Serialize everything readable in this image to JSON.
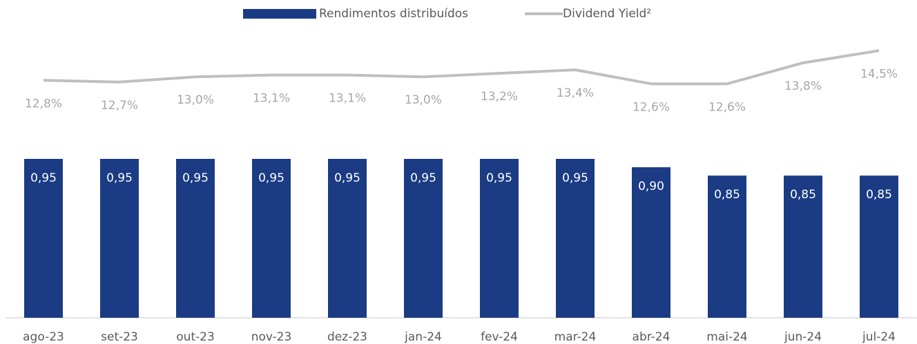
{
  "chart_data": {
    "type": "bar",
    "categories": [
      "ago-23",
      "set-23",
      "out-23",
      "nov-23",
      "dez-23",
      "jan-24",
      "fev-24",
      "mar-24",
      "abr-24",
      "mai-24",
      "jun-24",
      "jul-24"
    ],
    "series": [
      {
        "name": "Rendimentos distribuídos",
        "type": "bar",
        "color": "#1b3c84",
        "values": [
          0.95,
          0.95,
          0.95,
          0.95,
          0.95,
          0.95,
          0.95,
          0.95,
          0.9,
          0.85,
          0.85,
          0.85
        ],
        "value_labels": [
          "0,95",
          "0,95",
          "0,95",
          "0,95",
          "0,95",
          "0,95",
          "0,95",
          "0,95",
          "0,90",
          "0,85",
          "0,85",
          "0,85"
        ]
      },
      {
        "name": "Dividend Yield²",
        "type": "line",
        "axis": "y2",
        "color": "#bfbfbf",
        "values": [
          12.8,
          12.7,
          13.0,
          13.1,
          13.1,
          13.0,
          13.2,
          13.4,
          12.6,
          12.6,
          13.8,
          14.5
        ],
        "value_labels": [
          "12,8%",
          "12,7%",
          "13,0%",
          "13,1%",
          "13,1%",
          "13,0%",
          "13,2%",
          "13,4%",
          "12,6%",
          "12,6%",
          "13,8%",
          "14,5%"
        ]
      }
    ],
    "ylim": [
      0,
      1.9
    ],
    "y2lim": [
      -0.8,
      17.4
    ],
    "legend": "top"
  }
}
